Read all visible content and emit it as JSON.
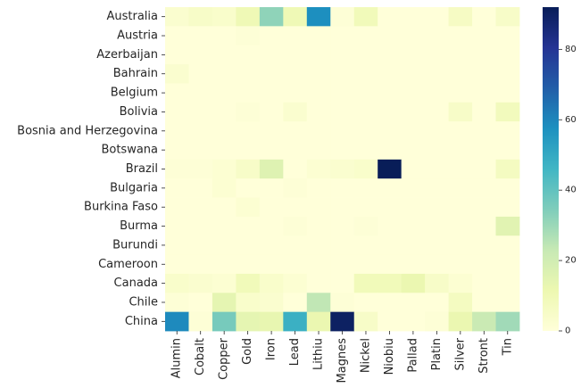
{
  "chart_data": {
    "type": "heatmap",
    "title": "",
    "xlabel": "",
    "ylabel": "",
    "colormap": "YlGnBu",
    "vmin": 0,
    "vmax": 92,
    "colorbar_ticks": [
      0,
      20,
      40,
      60,
      80
    ],
    "rows": [
      "Australia",
      "Austria",
      "Azerbaijan",
      "Bahrain",
      "Belgium",
      "Bolivia",
      "Bosnia and Herzegovina",
      "Botswana",
      "Brazil",
      "Bulgaria",
      "Burkina Faso",
      "Burma",
      "Burundi",
      "Cameroon",
      "Canada",
      "Chile",
      "China"
    ],
    "columns": [
      "Alumin",
      "Cobalt",
      "Copper",
      "Gold",
      "Iron",
      "Lead",
      "Lithiu",
      "Magnes",
      "Nickel",
      "Niobiu",
      "Pallad",
      "Platin",
      "Silver",
      "Stront",
      "Tin"
    ],
    "values": [
      [
        3,
        5,
        4,
        10,
        32,
        10,
        58,
        1,
        9,
        0,
        0,
        0,
        6,
        0,
        5
      ],
      [
        0,
        0,
        0,
        1,
        0,
        0,
        0,
        0,
        0,
        0,
        0,
        0,
        0,
        0,
        0
      ],
      [
        0,
        0,
        0,
        0,
        0,
        0,
        0,
        0,
        0,
        0,
        0,
        0,
        0,
        0,
        0
      ],
      [
        3,
        0,
        0,
        0,
        0,
        0,
        0,
        0,
        0,
        0,
        0,
        0,
        0,
        0,
        0
      ],
      [
        0,
        0,
        0,
        0,
        0,
        0,
        0,
        0,
        0,
        0,
        0,
        0,
        0,
        0,
        0
      ],
      [
        0,
        0,
        0,
        1,
        0,
        3,
        0,
        0,
        0,
        0,
        0,
        0,
        5,
        0,
        8
      ],
      [
        0,
        0,
        0,
        0,
        0,
        0,
        0,
        0,
        0,
        0,
        0,
        0,
        0,
        0,
        0
      ],
      [
        0,
        0,
        0,
        0,
        0,
        0,
        0,
        0,
        0,
        0,
        0,
        0,
        0,
        0,
        0
      ],
      [
        1,
        1,
        2,
        5,
        16,
        0,
        2,
        3,
        4,
        92,
        0,
        0,
        0,
        0,
        7
      ],
      [
        0,
        0,
        2,
        0,
        0,
        1,
        0,
        0,
        0,
        0,
        0,
        0,
        0,
        0,
        0
      ],
      [
        0,
        0,
        0,
        2,
        0,
        0,
        0,
        0,
        0,
        0,
        0,
        0,
        0,
        0,
        0
      ],
      [
        0,
        0,
        0,
        0,
        0,
        1,
        0,
        0,
        1,
        0,
        0,
        0,
        0,
        0,
        15
      ],
      [
        0,
        0,
        0,
        0,
        0,
        0,
        0,
        0,
        0,
        0,
        0,
        0,
        0,
        0,
        0
      ],
      [
        0,
        0,
        0,
        0,
        0,
        0,
        0,
        0,
        0,
        0,
        0,
        0,
        0,
        0,
        0
      ],
      [
        4,
        3,
        2,
        9,
        4,
        2,
        0,
        0,
        9,
        9,
        12,
        5,
        2,
        0,
        0
      ],
      [
        1,
        0,
        14,
        4,
        3,
        0,
        24,
        1,
        0,
        0,
        0,
        0,
        7,
        0,
        0
      ],
      [
        59,
        1,
        36,
        14,
        13,
        48,
        12,
        90,
        5,
        0,
        0,
        1,
        12,
        22,
        29
      ]
    ]
  }
}
